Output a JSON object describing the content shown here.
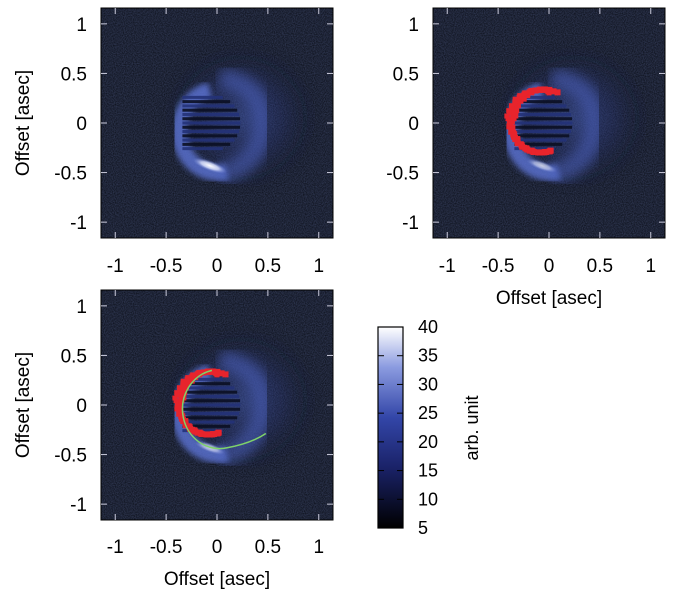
{
  "panels": [
    {
      "id": "top-left",
      "xticks": [
        "-1",
        "-0.5",
        "0",
        "0.5",
        "1"
      ],
      "yticks": [
        "1",
        "0.5",
        "0",
        "-0.5",
        "-1"
      ],
      "xlabel": "",
      "ylabel": "Offset [asec]",
      "overlay": "none"
    },
    {
      "id": "top-right",
      "xticks": [
        "-1",
        "-0.5",
        "0",
        "0.5",
        "1"
      ],
      "yticks": [
        "1",
        "0.5",
        "0",
        "-0.5",
        "-1"
      ],
      "xlabel": "Offset [asec]",
      "ylabel": "Offset [asec]",
      "overlay": "red-points"
    },
    {
      "id": "bottom-left",
      "xticks": [
        "-1",
        "-0.5",
        "0",
        "0.5",
        "1"
      ],
      "yticks": [
        "1",
        "0.5",
        "0",
        "-0.5",
        "-1"
      ],
      "xlabel": "Offset [asec]",
      "ylabel": "Offset [asec]",
      "overlay": "red-points-and-fit"
    }
  ],
  "colorbar": {
    "label": "arb. unit",
    "ticks": [
      "40",
      "35",
      "30",
      "25",
      "20",
      "15",
      "10",
      "5"
    ],
    "min": 5,
    "max": 40
  },
  "colors": {
    "background": "#060910",
    "disk": "#3a4ea8",
    "bright": "#ffffff",
    "points": "#e8242c",
    "fit_line": "#7fd36a"
  }
}
